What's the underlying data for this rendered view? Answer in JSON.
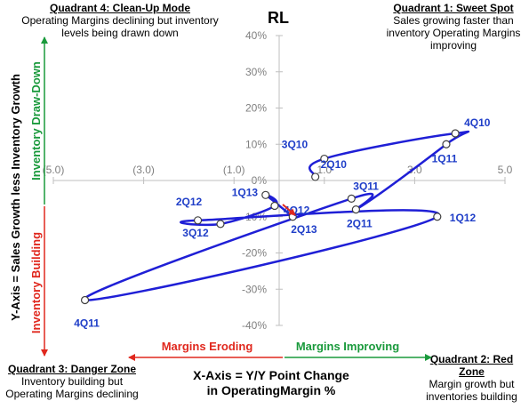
{
  "chart_data": {
    "type": "scatter",
    "title": "RL",
    "xlabel": "X-Axis = Y/Y Point Change in OperatingMargin %",
    "ylabel": "Y-Axis = Sales Growth less Inventory Growth",
    "xlim": [
      -5.0,
      5.0
    ],
    "ylim": [
      -40,
      40
    ],
    "x_ticks": [
      "(5.0)",
      "(3.0)",
      "(1.0)",
      "1.0",
      "3.0",
      "5.0"
    ],
    "x_tick_values": [
      -5,
      -3,
      -1,
      1,
      3,
      5
    ],
    "y_ticks": [
      "40%",
      "30%",
      "20%",
      "10%",
      "0%",
      "-10%",
      "-20%",
      "-30%",
      "-40%"
    ],
    "y_tick_values": [
      40,
      30,
      20,
      10,
      0,
      -10,
      -20,
      -30,
      -40
    ],
    "grid": true,
    "line_color": "#1f1fd6",
    "label_color": "#1f3ec8",
    "arrow_color": "#e0281e",
    "points": [
      {
        "label": "4Q10",
        "x": 3.9,
        "y": 13
      },
      {
        "label": "1Q11",
        "x": 3.7,
        "y": 10
      },
      {
        "label": "2Q11",
        "x": 1.7,
        "y": -8
      },
      {
        "label": "3Q11",
        "x": 1.6,
        "y": -5
      },
      {
        "label": "4Q11",
        "x": -4.3,
        "y": -33
      },
      {
        "label": "1Q12",
        "x": 3.5,
        "y": -10
      },
      {
        "label": "2Q12",
        "x": -1.8,
        "y": -11
      },
      {
        "label": "3Q12",
        "x": -1.3,
        "y": -12
      },
      {
        "label": "4Q12",
        "x": -0.1,
        "y": -7
      },
      {
        "label": "1Q13",
        "x": -0.3,
        "y": -4
      },
      {
        "label": "2Q13",
        "x": 0.3,
        "y": -10
      },
      {
        "label": "2Q10",
        "x": 0.8,
        "y": 1
      },
      {
        "label": "3Q10",
        "x": 1.0,
        "y": 6
      }
    ],
    "path_order": [
      "2Q10",
      "3Q10",
      "4Q10",
      "1Q11",
      "2Q11",
      "3Q11",
      "4Q11",
      "1Q12",
      "2Q12",
      "3Q12",
      "4Q12",
      "1Q13",
      "2Q13"
    ]
  },
  "axes_annotations": {
    "y_up_label": "Inventory Draw-Down",
    "y_down_label": "Inventory Building",
    "x_left_label": "Margins Eroding",
    "x_right_label": "Margins Improving",
    "green": "#1a9a3c",
    "red": "#e0281e"
  },
  "quadrants": {
    "q1": {
      "title": "Quadrant 1: Sweet Spot",
      "desc": [
        "Sales growing faster than",
        "inventory Operating Margins",
        "improving"
      ]
    },
    "q2": {
      "title": "Quadrant 2: Red Zone",
      "desc": [
        "Margin growth but",
        "inventories building"
      ]
    },
    "q3": {
      "title": "Quadrant 3: Danger Zone",
      "desc": [
        "Inventory building but",
        "Operating Margins declining"
      ]
    },
    "q4": {
      "title": "Quadrant 4: Clean-Up Mode",
      "desc": [
        "Operating Margins declining but inventory",
        "levels being drawn down"
      ]
    }
  }
}
